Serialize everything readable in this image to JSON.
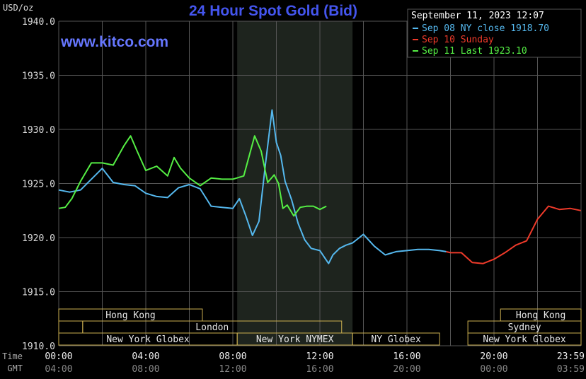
{
  "chart_data": {
    "type": "line",
    "title": "24 Hour Spot Gold (Bid)",
    "unit_label": "USD/oz",
    "watermark": "www.kitco.com",
    "timestamp": "September 11, 2023 12:07",
    "ylim": [
      1910,
      1940
    ],
    "y_ticks": [
      "1940.0",
      "1935.0",
      "1930.0",
      "1925.0",
      "1920.0",
      "1915.0",
      "1910.0"
    ],
    "y_tick_values": [
      1940,
      1935,
      1930,
      1925,
      1920,
      1915,
      1910
    ],
    "x_row_labels": {
      "ny": "NY Time",
      "gmt": "GMT"
    },
    "x_ticks_ny": [
      "00:00",
      "04:00",
      "08:00",
      "12:00",
      "16:00",
      "20:00",
      "23:59"
    ],
    "x_ticks_gmt": [
      "04:00",
      "08:00",
      "12:00",
      "16:00",
      "20:00",
      "00:00",
      "03:59"
    ],
    "x_tick_hours": [
      0,
      4,
      8,
      12,
      16,
      20,
      24
    ],
    "grid": true,
    "legend_position": "top-right",
    "colors": {
      "background": "#000000",
      "grid": "#555555",
      "title": "#4455ee",
      "watermark": "#6677ff",
      "text": "#ffffff",
      "axis_text": "#dddddd",
      "session_border": "#ccb050",
      "session_text": "#e8e8e8",
      "nymex_shade": "#1e241e"
    },
    "nymex_hours": [
      8.2,
      13.5
    ],
    "series": [
      {
        "name": "Sep 08 NY close 1918.70",
        "color": "#55b8ee",
        "x": [
          0,
          0.5,
          1,
          1.5,
          2,
          2.5,
          3,
          3.5,
          4,
          4.5,
          5,
          5.5,
          6,
          6.5,
          7,
          7.5,
          8,
          8.3,
          8.6,
          8.9,
          9.2,
          9.5,
          9.8,
          10.0,
          10.2,
          10.4,
          10.7,
          11.0,
          11.3,
          11.6,
          12.0,
          12.4,
          12.6,
          12.9,
          13.2,
          13.5,
          14.0,
          14.5,
          15.0,
          15.5,
          16.0,
          16.5,
          17.0,
          17.5,
          17.8
        ],
        "y": [
          1924.4,
          1924.2,
          1924.4,
          1925.4,
          1926.4,
          1925.1,
          1924.9,
          1924.8,
          1924.1,
          1923.8,
          1923.7,
          1924.6,
          1924.9,
          1924.5,
          1922.9,
          1922.8,
          1922.7,
          1923.6,
          1922.0,
          1920.2,
          1921.5,
          1926.8,
          1931.8,
          1928.8,
          1927.6,
          1925.2,
          1923.5,
          1921.3,
          1919.8,
          1919.0,
          1918.8,
          1917.6,
          1918.4,
          1919.0,
          1919.3,
          1919.5,
          1920.3,
          1919.2,
          1918.4,
          1918.7,
          1918.8,
          1918.9,
          1918.9,
          1918.8,
          1918.7
        ]
      },
      {
        "name": "Sep 10 Sunday",
        "color": "#ee3a2a",
        "x": [
          17.8,
          18.0,
          18.5,
          19.0,
          19.5,
          20.0,
          20.5,
          21.0,
          21.5,
          22.0,
          22.5,
          23.0,
          23.5,
          23.99
        ],
        "y": [
          1918.7,
          1918.6,
          1918.6,
          1917.7,
          1917.6,
          1918.0,
          1918.6,
          1919.3,
          1919.7,
          1921.7,
          1922.9,
          1922.6,
          1922.7,
          1922.5
        ]
      },
      {
        "name": "Sep 11 Last 1923.10",
        "color": "#55ee44",
        "x": [
          0,
          0.3,
          0.6,
          1.0,
          1.5,
          2.0,
          2.5,
          3.0,
          3.3,
          3.6,
          4.0,
          4.5,
          5.0,
          5.3,
          5.6,
          6.0,
          6.5,
          7.0,
          7.5,
          8.0,
          8.5,
          9.0,
          9.3,
          9.6,
          9.9,
          10.1,
          10.3,
          10.5,
          10.8,
          11.1,
          11.4,
          11.7,
          12.0,
          12.3
        ],
        "y": [
          1922.7,
          1922.8,
          1923.6,
          1925.2,
          1926.9,
          1926.9,
          1926.7,
          1928.5,
          1929.4,
          1928.0,
          1926.2,
          1926.6,
          1925.7,
          1927.4,
          1926.4,
          1925.5,
          1924.8,
          1925.5,
          1925.4,
          1925.4,
          1925.7,
          1929.4,
          1928.0,
          1925.1,
          1925.8,
          1925.0,
          1922.7,
          1923.0,
          1922.0,
          1922.8,
          1922.9,
          1922.9,
          1922.6,
          1922.9
        ]
      }
    ],
    "session_rows": [
      [
        {
          "label": "Hong Kong",
          "start": 0,
          "end": 6.6
        },
        {
          "label": "Hong Kong",
          "start": 20.3,
          "end": 24
        }
      ],
      [
        {
          "label": "",
          "start": 0,
          "end": 1.1
        },
        {
          "label": "London",
          "start": 1.1,
          "end": 13.0
        },
        {
          "label": "Sydney",
          "start": 18.8,
          "end": 24
        }
      ],
      [
        {
          "label": "New York Globex",
          "start": 0,
          "end": 8.2
        },
        {
          "label": "New York NYMEX",
          "start": 8.2,
          "end": 13.5
        },
        {
          "label": "NY Globex",
          "start": 13.5,
          "end": 17.5
        },
        {
          "label": "New York Globex",
          "start": 18.8,
          "end": 24
        }
      ]
    ]
  }
}
